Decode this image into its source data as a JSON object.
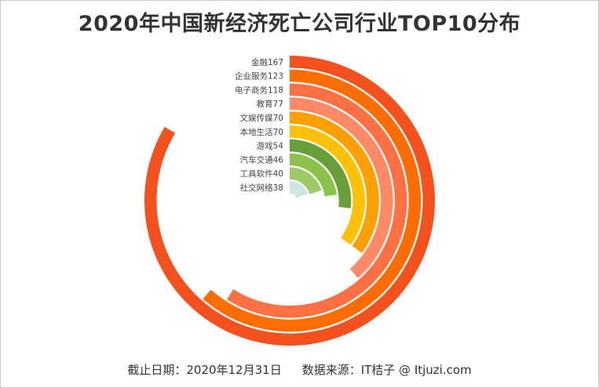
{
  "title": "2020年中国新经济死亡公司行业TOP10分布",
  "footer": {
    "date": "截止日期：2020年12月31日",
    "source": "数据来源：IT桔子 @ Itjuzi.com"
  },
  "colors": [
    "#f4511e",
    "#ff6d00",
    "#ff7043",
    "#ff8a65",
    "#ffa000",
    "#ffc107",
    "#689f38",
    "#8bc34a",
    "#9ccc65",
    "#cfe5e1"
  ],
  "chart_data": {
    "type": "radial-bar",
    "title": "2020年中国新经济死亡公司行业TOP10分布",
    "max": 200,
    "categories": [
      "金融",
      "企业服务",
      "电子商务",
      "教育",
      "文娱传媒",
      "本地生活",
      "游戏",
      "汽车交通",
      "工具软件",
      "社交网络"
    ],
    "values": [
      167,
      123,
      118,
      77,
      70,
      70,
      54,
      46,
      40,
      38
    ],
    "labels": [
      "金融167",
      "企业服务123",
      "电子商务118",
      "教育77",
      "文娱传媒70",
      "本地生活70",
      "游戏54",
      "汽车交通46",
      "工具软件40",
      "社交网络38"
    ]
  }
}
